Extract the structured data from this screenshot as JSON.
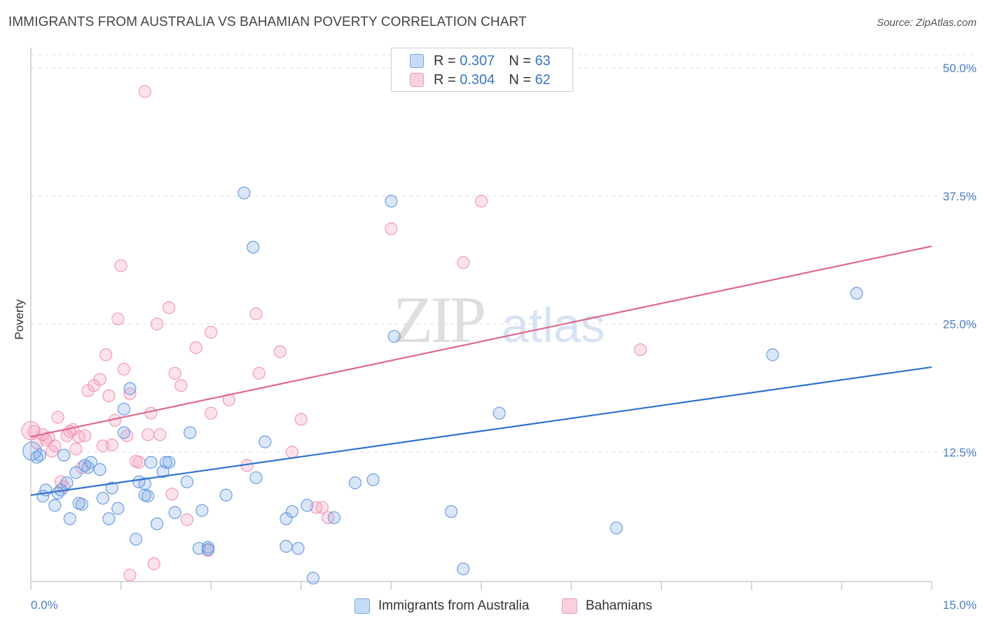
{
  "header": {
    "title": "IMMIGRANTS FROM AUSTRALIA VS BAHAMIAN POVERTY CORRELATION CHART",
    "source": "Source: ZipAtlas.com"
  },
  "watermark": {
    "zip": "ZIP",
    "atlas": "atlas"
  },
  "legend": {
    "rows": [
      {
        "r_label": "R =",
        "r_value": "0.307",
        "n_label": "N =",
        "n_value": "63"
      },
      {
        "r_label": "R =",
        "r_value": "0.304",
        "n_label": "N =",
        "n_value": "62"
      }
    ]
  },
  "bottom_legend": {
    "series1": "Immigrants from Australia",
    "series2": "Bahamians"
  },
  "chart_data": {
    "type": "scatter",
    "ylabel": "Poverty",
    "xlim": [
      0,
      15
    ],
    "ylim": [
      0,
      50
    ],
    "x_ticks": [
      "0.0%",
      "15.0%"
    ],
    "y_ticks": [
      {
        "value": 12.5,
        "label": "12.5%"
      },
      {
        "value": 25,
        "label": "25.0%"
      },
      {
        "value": 37.5,
        "label": "37.5%"
      },
      {
        "value": 50,
        "label": "50.0%"
      }
    ],
    "grid": true,
    "colors": {
      "series1": "#7aa8e6",
      "series2": "#f39ab8",
      "line1": "#3172d0",
      "line2": "#e0698f"
    },
    "series": [
      {
        "name": "Immigrants from Australia",
        "trend": {
          "x": [
            0,
            15
          ],
          "y": [
            8.3,
            20.8
          ]
        },
        "points": [
          [
            0.1,
            12.0
          ],
          [
            0.15,
            12.2
          ],
          [
            0.2,
            8.2
          ],
          [
            0.25,
            8.8
          ],
          [
            0.4,
            7.3
          ],
          [
            0.5,
            8.8
          ],
          [
            0.45,
            8.5
          ],
          [
            0.6,
            9.5
          ],
          [
            0.65,
            6.0
          ],
          [
            0.8,
            7.5
          ],
          [
            0.75,
            10.5
          ],
          [
            0.85,
            7.4
          ],
          [
            0.9,
            11.2
          ],
          [
            0.95,
            11.0
          ],
          [
            1.0,
            11.5
          ],
          [
            1.15,
            10.8
          ],
          [
            1.2,
            8.0
          ],
          [
            1.3,
            6.0
          ],
          [
            1.35,
            9.0
          ],
          [
            1.45,
            7.0
          ],
          [
            1.55,
            14.4
          ],
          [
            1.55,
            16.7
          ],
          [
            1.65,
            18.7
          ],
          [
            1.75,
            4.0
          ],
          [
            1.8,
            9.6
          ],
          [
            1.9,
            8.3
          ],
          [
            1.95,
            8.2
          ],
          [
            2.0,
            11.5
          ],
          [
            2.1,
            5.5
          ],
          [
            2.2,
            10.6
          ],
          [
            2.25,
            11.5
          ],
          [
            2.3,
            11.5
          ],
          [
            2.4,
            6.6
          ],
          [
            2.6,
            9.6
          ],
          [
            2.65,
            14.4
          ],
          [
            2.8,
            3.1
          ],
          [
            2.85,
            6.8
          ],
          [
            2.95,
            3.0
          ],
          [
            2.95,
            3.2
          ],
          [
            3.25,
            8.3
          ],
          [
            3.55,
            37.8
          ],
          [
            3.7,
            32.5
          ],
          [
            3.75,
            10.0
          ],
          [
            3.9,
            13.5
          ],
          [
            4.25,
            6.0
          ],
          [
            4.25,
            3.3
          ],
          [
            4.35,
            6.7
          ],
          [
            4.45,
            3.1
          ],
          [
            4.6,
            7.3
          ],
          [
            4.7,
            0.2
          ],
          [
            5.05,
            6.1
          ],
          [
            5.4,
            9.5
          ],
          [
            5.7,
            9.8
          ],
          [
            6.0,
            37.0
          ],
          [
            6.05,
            23.8
          ],
          [
            7.0,
            6.7
          ],
          [
            7.2,
            1.1
          ],
          [
            7.8,
            16.3
          ],
          [
            9.75,
            5.1
          ],
          [
            12.35,
            22.0
          ],
          [
            13.75,
            28.0
          ],
          [
            1.9,
            9.4
          ],
          [
            0.55,
            12.2
          ]
        ]
      },
      {
        "name": "Bahamians",
        "trend": {
          "x": [
            0,
            15
          ],
          "y": [
            14.0,
            32.6
          ]
        },
        "points": [
          [
            0.05,
            14.5
          ],
          [
            0.1,
            13.4
          ],
          [
            0.2,
            14.2
          ],
          [
            0.25,
            13.7
          ],
          [
            0.3,
            13.9
          ],
          [
            0.35,
            12.6
          ],
          [
            0.4,
            13.1
          ],
          [
            0.45,
            15.9
          ],
          [
            0.5,
            9.6
          ],
          [
            0.55,
            9.1
          ],
          [
            0.6,
            14.1
          ],
          [
            0.65,
            14.5
          ],
          [
            0.7,
            14.7
          ],
          [
            0.75,
            12.8
          ],
          [
            0.8,
            14.0
          ],
          [
            0.85,
            11.0
          ],
          [
            0.9,
            14.1
          ],
          [
            0.95,
            18.5
          ],
          [
            1.05,
            19.0
          ],
          [
            1.15,
            19.6
          ],
          [
            1.2,
            13.1
          ],
          [
            1.25,
            22.0
          ],
          [
            1.3,
            18.0
          ],
          [
            1.35,
            13.2
          ],
          [
            1.4,
            15.6
          ],
          [
            1.45,
            25.5
          ],
          [
            1.5,
            30.7
          ],
          [
            1.55,
            20.6
          ],
          [
            1.6,
            14.1
          ],
          [
            1.65,
            0.5
          ],
          [
            1.65,
            18.2
          ],
          [
            1.75,
            11.6
          ],
          [
            1.8,
            11.5
          ],
          [
            1.9,
            47.7
          ],
          [
            1.95,
            14.2
          ],
          [
            2.0,
            16.3
          ],
          [
            2.05,
            1.6
          ],
          [
            2.1,
            25.0
          ],
          [
            2.15,
            14.2
          ],
          [
            2.3,
            26.6
          ],
          [
            2.35,
            8.4
          ],
          [
            2.4,
            20.2
          ],
          [
            2.5,
            19.0
          ],
          [
            2.6,
            5.9
          ],
          [
            2.75,
            22.7
          ],
          [
            2.95,
            2.9
          ],
          [
            3.0,
            16.3
          ],
          [
            3.0,
            24.2
          ],
          [
            3.3,
            17.6
          ],
          [
            3.6,
            11.2
          ],
          [
            3.75,
            26.0
          ],
          [
            3.8,
            20.2
          ],
          [
            4.15,
            22.3
          ],
          [
            4.35,
            12.5
          ],
          [
            4.5,
            15.7
          ],
          [
            4.75,
            7.1
          ],
          [
            4.85,
            7.1
          ],
          [
            4.95,
            6.1
          ],
          [
            6.0,
            34.3
          ],
          [
            7.2,
            31.0
          ],
          [
            7.5,
            37.0
          ],
          [
            10.15,
            22.5
          ]
        ]
      }
    ]
  }
}
